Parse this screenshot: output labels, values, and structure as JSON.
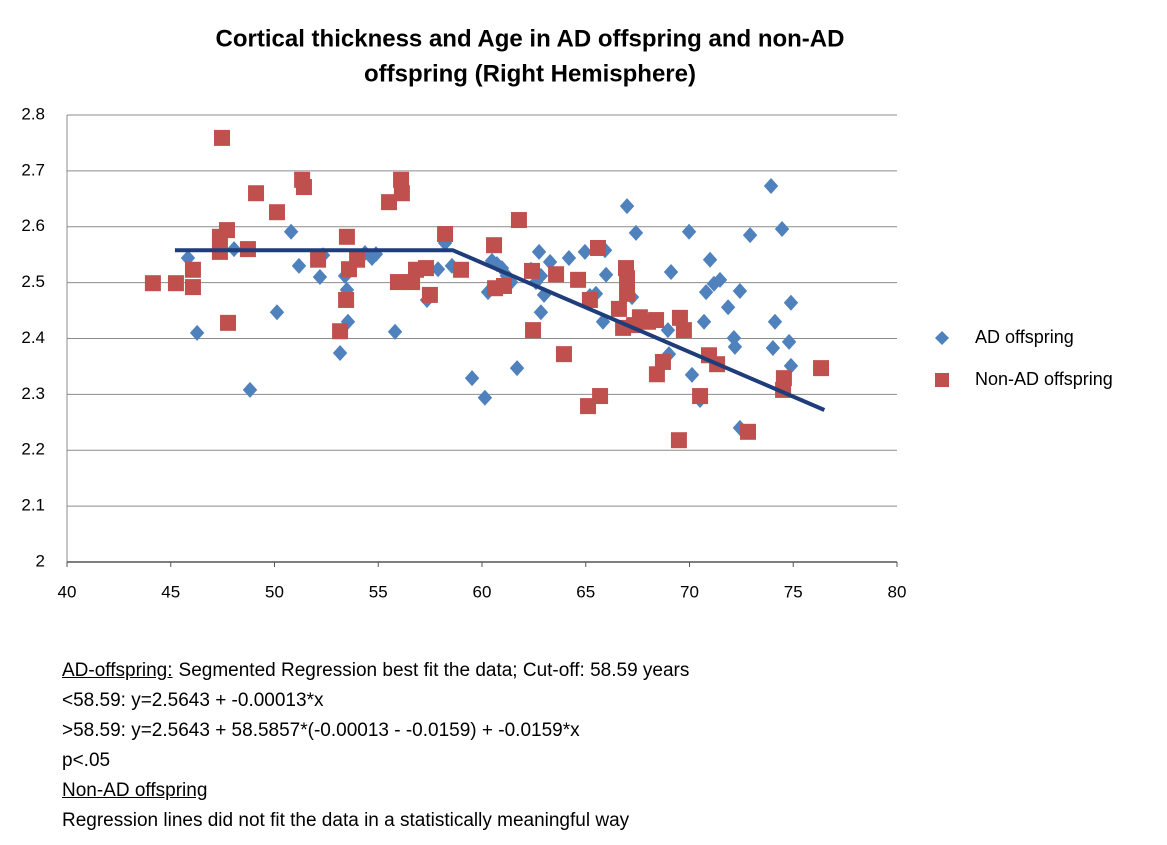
{
  "chart_data": {
    "type": "scatter",
    "title": [
      "Cortical thickness and Age in AD offspring and non-AD",
      "offspring (Right Hemisphere)"
    ],
    "xlim": [
      40,
      80
    ],
    "xticks": [
      40,
      45,
      50,
      55,
      60,
      65,
      70,
      75,
      80
    ],
    "ylim": [
      2,
      2.8
    ],
    "yticks": [
      2,
      2.1,
      2.2,
      2.3,
      2.4,
      2.5,
      2.6,
      2.7,
      2.8
    ],
    "grid": "y",
    "legend": "right",
    "series": [
      {
        "name": "AD offspring",
        "color": "#4f81bd",
        "marker": "diamond",
        "x": [
          45.83,
          46.27,
          48.05,
          48.82,
          50.12,
          50.8,
          51.18,
          52.19,
          52.34,
          53.16,
          53.4,
          53.49,
          53.54,
          54.36,
          54.7,
          54.89,
          55.81,
          57.35,
          57.88,
          58.22,
          58.55,
          59.52,
          60.14,
          60.29,
          60.48,
          60.72,
          60.96,
          61.2,
          61.4,
          61.69,
          62.36,
          62.6,
          62.75,
          62.84,
          62.84,
          62.99,
          63.28,
          64.19,
          64.96,
          65.2,
          65.49,
          65.83,
          65.93,
          65.98,
          66.99,
          67.23,
          67.42,
          68.96,
          69.01,
          69.11,
          69.98,
          70.12,
          70.51,
          70.7,
          70.8,
          70.99,
          71.18,
          71.47,
          71.86,
          72.14,
          72.19,
          72.43,
          72.43,
          72.92,
          73.93,
          74.02,
          74.12,
          74.46,
          74.8,
          74.89,
          74.89
        ],
        "values": [
          2.544,
          2.41,
          2.56,
          2.308,
          2.447,
          2.591,
          2.53,
          2.51,
          2.549,
          2.374,
          2.512,
          2.487,
          2.43,
          2.553,
          2.544,
          2.551,
          2.412,
          2.469,
          2.524,
          2.571,
          2.53,
          2.329,
          2.294,
          2.483,
          2.539,
          2.533,
          2.526,
          2.512,
          2.501,
          2.347,
          2.523,
          2.501,
          2.555,
          2.512,
          2.447,
          2.478,
          2.537,
          2.544,
          2.555,
          2.476,
          2.48,
          2.43,
          2.558,
          2.514,
          2.637,
          2.474,
          2.589,
          2.415,
          2.372,
          2.519,
          2.591,
          2.335,
          2.29,
          2.43,
          2.483,
          2.541,
          2.498,
          2.505,
          2.456,
          2.401,
          2.385,
          2.485,
          2.24,
          2.585,
          2.673,
          2.383,
          2.43,
          2.596,
          2.394,
          2.351,
          2.464
        ]
      },
      {
        "name": "Non-AD offspring",
        "color": "#c0504d",
        "marker": "square",
        "x": [
          44.14,
          45.25,
          46.07,
          46.07,
          47.47,
          47.37,
          47.37,
          47.71,
          47.76,
          48.72,
          49.11,
          50.12,
          51.33,
          51.42,
          52.1,
          53.16,
          53.45,
          53.49,
          53.59,
          53.98,
          55.52,
          56.1,
          56.14,
          55.95,
          56.63,
          56.82,
          57.3,
          57.49,
          58.22,
          58.99,
          60.58,
          60.63,
          61.06,
          61.78,
          62.41,
          62.46,
          63.57,
          63.95,
          64.63,
          65.11,
          65.2,
          65.59,
          65.69,
          66.6,
          66.8,
          66.94,
          66.99,
          66.99,
          67.33,
          67.61,
          68.0,
          68.39,
          68.43,
          68.72,
          69.49,
          69.54,
          69.73,
          70.51,
          70.94,
          71.33,
          72.82,
          74.51,
          74.55,
          76.34
        ],
        "values": [
          2.499,
          2.499,
          2.523,
          2.492,
          2.759,
          2.582,
          2.555,
          2.594,
          2.428,
          2.56,
          2.66,
          2.626,
          2.684,
          2.671,
          2.541,
          2.413,
          2.469,
          2.582,
          2.524,
          2.541,
          2.644,
          2.684,
          2.66,
          2.501,
          2.501,
          2.523,
          2.526,
          2.478,
          2.587,
          2.523,
          2.567,
          2.49,
          2.494,
          2.612,
          2.521,
          2.415,
          2.515,
          2.372,
          2.505,
          2.279,
          2.469,
          2.562,
          2.297,
          2.453,
          2.419,
          2.526,
          2.508,
          2.48,
          2.424,
          2.438,
          2.43,
          2.433,
          2.336,
          2.358,
          2.218,
          2.437,
          2.415,
          2.297,
          2.37,
          2.354,
          2.233,
          2.308,
          2.329,
          2.347
        ]
      }
    ],
    "fit": {
      "color": "#1f3d7a",
      "x": [
        45.2,
        58.59,
        76.5
      ],
      "values": [
        2.558,
        2.558,
        2.272
      ]
    },
    "notes": [
      {
        "heading": "AD-offspring:",
        "text": "Segmented Regression best fit the data; Cut-off: 58.59 years"
      },
      {
        "text": "<58.59: y=2.5643 + -0.00013*x"
      },
      {
        "text": ">58.59: y=2.5643 + 58.5857*(-0.00013 - -0.0159) + -0.0159*x"
      },
      {
        "text": "p<.05"
      },
      {
        "heading": "Non-AD offspring"
      },
      {
        "text": "Regression lines did not fit the data in a statistically meaningful way"
      }
    ]
  }
}
